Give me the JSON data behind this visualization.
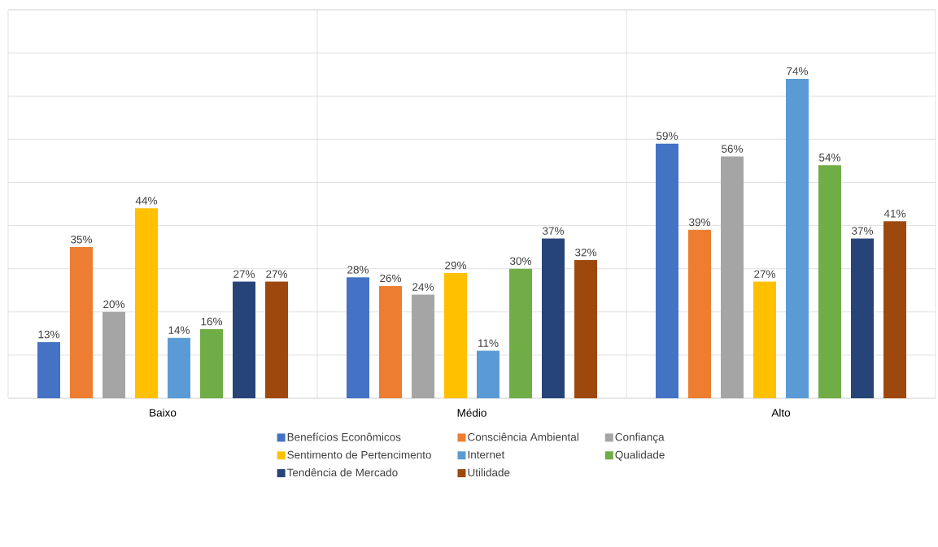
{
  "chart_data": {
    "type": "bar",
    "categories": [
      "Baixo",
      "Médio",
      "Alto"
    ],
    "series": [
      {
        "name": "Benefícios Econômicos",
        "color": "#4472c4",
        "values": [
          13,
          28,
          59
        ],
        "value_labels": [
          "13%",
          "28%",
          "59%"
        ]
      },
      {
        "name": "Consciência Ambiental",
        "color": "#ed7d31",
        "values": [
          35,
          26,
          39
        ],
        "value_labels": [
          "35%",
          "26%",
          "39%"
        ]
      },
      {
        "name": "Confiança",
        "color": "#a5a5a5",
        "values": [
          20,
          24,
          56
        ],
        "value_labels": [
          "20%",
          "24%",
          "56%"
        ]
      },
      {
        "name": "Sentimento de Pertencimento",
        "color": "#ffc000",
        "values": [
          44,
          29,
          27
        ],
        "value_labels": [
          "44%",
          "29%",
          "27%"
        ]
      },
      {
        "name": "Internet",
        "color": "#5b9bd5",
        "values": [
          14,
          11,
          74
        ],
        "value_labels": [
          "14%",
          "11%",
          "74%"
        ]
      },
      {
        "name": "Qualidade",
        "color": "#70ad47",
        "values": [
          16,
          30,
          54
        ],
        "value_labels": [
          "16%",
          "30%",
          "54%"
        ]
      },
      {
        "name": "Tendência de Mercado",
        "color": "#264478",
        "values": [
          27,
          37,
          37
        ],
        "value_labels": [
          "27%",
          "37%",
          "37%"
        ]
      },
      {
        "name": "Utilidade",
        "color": "#9e480e",
        "values": [
          27,
          32,
          41
        ],
        "value_labels": [
          "27%",
          "32%",
          "41%"
        ]
      }
    ],
    "ylim": [
      0,
      90
    ],
    "yticks": [
      {
        "value": 0,
        "label": null
      },
      {
        "value": 10,
        "label": null
      },
      {
        "value": 20,
        "label": null
      },
      {
        "value": 30,
        "label": null
      },
      {
        "value": 40,
        "label": null
      },
      {
        "value": 50,
        "label": null
      },
      {
        "value": 60,
        "label": null
      },
      {
        "value": 70,
        "label": null
      },
      {
        "value": 80,
        "label": null
      },
      {
        "value": 90,
        "label": null
      }
    ],
    "tick_labels": "x",
    "grid": true,
    "legend": "bottom"
  }
}
